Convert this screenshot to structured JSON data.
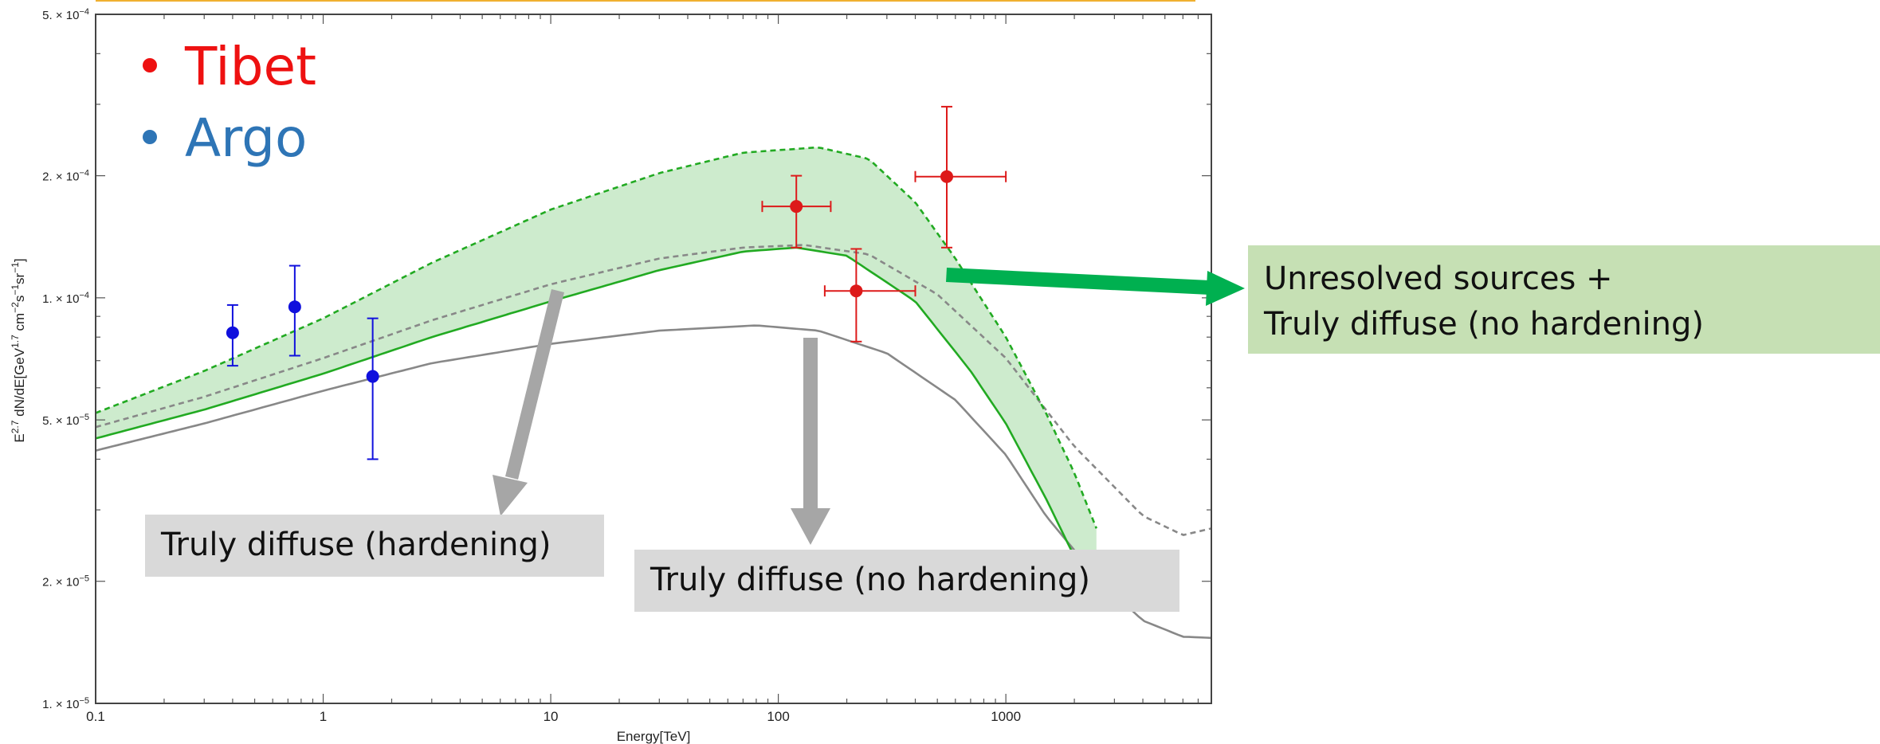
{
  "chart_data": {
    "type": "line",
    "xlabel": "Energy[TeV]",
    "ylabel_parts": {
      "base": "E",
      "exp1": "2.7",
      "mid": " dN/dE[GeV",
      "exp2": "1.7",
      "mid2": " cm",
      "exp3": "−2",
      "mid3": "s",
      "exp4": "−1",
      "mid4": "sr",
      "exp5": "−1",
      "end": "]"
    },
    "x_scale": "log",
    "y_scale": "log",
    "xlim": [
      0.1,
      8000
    ],
    "ylim": [
      1e-05,
      0.0005
    ],
    "x_ticks": [
      {
        "value": 0.1,
        "label": "0.1"
      },
      {
        "value": 1,
        "label": "1"
      },
      {
        "value": 10,
        "label": "10"
      },
      {
        "value": 100,
        "label": "100"
      },
      {
        "value": 1000,
        "label": "1000"
      }
    ],
    "y_ticks": [
      {
        "value": 1e-05,
        "label_mant": "1. × 10",
        "label_exp": "−5"
      },
      {
        "value": 2e-05,
        "label_mant": "2. × 10",
        "label_exp": "−5"
      },
      {
        "value": 5e-05,
        "label_mant": "5. × 10",
        "label_exp": "−5"
      },
      {
        "value": 0.0001,
        "label_mant": "1. × 10",
        "label_exp": "−4"
      },
      {
        "value": 0.0002,
        "label_mant": "2. × 10",
        "label_exp": "−4"
      },
      {
        "value": 0.0005,
        "label_mant": "5. × 10",
        "label_exp": "−4"
      }
    ],
    "legend": [
      {
        "label": "Tibet",
        "color": "#ee1111"
      },
      {
        "label": "Argo",
        "color": "#2e75b6"
      }
    ],
    "band_color": "#cdebcd",
    "curves": {
      "green_dashed_upper": {
        "color": "#22aa22",
        "dash": true,
        "points": [
          [
            0.1,
            5.2e-05
          ],
          [
            0.3,
            6.6e-05
          ],
          [
            1,
            8.9e-05
          ],
          [
            3,
            0.000122
          ],
          [
            10,
            0.000165
          ],
          [
            30,
            0.000203
          ],
          [
            70,
            0.000228
          ],
          [
            150,
            0.000235
          ],
          [
            250,
            0.00022
          ],
          [
            400,
            0.000172
          ],
          [
            600,
            0.000125
          ],
          [
            1000,
            8e-05
          ],
          [
            1500,
            5.2e-05
          ],
          [
            2000,
            3.7e-05
          ],
          [
            2500,
            2.7e-05
          ]
        ]
      },
      "green_solid": {
        "color": "#22aa22",
        "dash": false,
        "points": [
          [
            0.1,
            4.5e-05
          ],
          [
            0.3,
            5.3e-05
          ],
          [
            1,
            6.5e-05
          ],
          [
            3,
            8e-05
          ],
          [
            10,
            9.8e-05
          ],
          [
            30,
            0.000117
          ],
          [
            70,
            0.00013
          ],
          [
            120,
            0.000133
          ],
          [
            200,
            0.000127
          ],
          [
            400,
            9.8e-05
          ],
          [
            700,
            6.6e-05
          ],
          [
            1000,
            4.9e-05
          ],
          [
            1500,
            3.2e-05
          ],
          [
            2000,
            2.3e-05
          ],
          [
            2500,
            1.8e-05
          ]
        ]
      },
      "gray_dashed": {
        "color": "#888888",
        "dash": true,
        "points": [
          [
            0.1,
            4.8e-05
          ],
          [
            0.3,
            5.7e-05
          ],
          [
            1,
            7.1e-05
          ],
          [
            3,
            8.8e-05
          ],
          [
            10,
            0.000108
          ],
          [
            30,
            0.000125
          ],
          [
            70,
            0.000133
          ],
          [
            130,
            0.000135
          ],
          [
            250,
            0.000128
          ],
          [
            500,
            0.000102
          ],
          [
            1000,
            7.1e-05
          ],
          [
            2000,
            4.3e-05
          ],
          [
            4000,
            2.9e-05
          ],
          [
            6000,
            2.6e-05
          ],
          [
            8000,
            2.7e-05
          ]
        ]
      },
      "gray_solid": {
        "color": "#888888",
        "dash": false,
        "points": [
          [
            0.1,
            4.2e-05
          ],
          [
            0.3,
            4.9e-05
          ],
          [
            1,
            5.9e-05
          ],
          [
            3,
            6.9e-05
          ],
          [
            10,
            7.7e-05
          ],
          [
            30,
            8.3e-05
          ],
          [
            80,
            8.55e-05
          ],
          [
            150,
            8.3e-05
          ],
          [
            300,
            7.3e-05
          ],
          [
            600,
            5.6e-05
          ],
          [
            1000,
            4.1e-05
          ],
          [
            1500,
            2.9e-05
          ],
          [
            2500,
            2.05e-05
          ],
          [
            4000,
            1.6e-05
          ],
          [
            6000,
            1.46e-05
          ],
          [
            8000,
            1.45e-05
          ]
        ]
      }
    },
    "series": [
      {
        "name": "Tibet",
        "color": "#dd1a1a",
        "points": [
          {
            "x": 120,
            "y": 0.000168,
            "xlo": 85,
            "xhi": 170,
            "ylo": 0.000133,
            "yhi": 0.0002
          },
          {
            "x": 220,
            "y": 0.000104,
            "xlo": 160,
            "xhi": 400,
            "ylo": 7.8e-05,
            "yhi": 0.000132
          },
          {
            "x": 550,
            "y": 0.000199,
            "xlo": 400,
            "xhi": 1000,
            "ylo": 0.000133,
            "yhi": 0.000296
          }
        ]
      },
      {
        "name": "Argo",
        "color": "#1010dd",
        "points": [
          {
            "x": 0.4,
            "y": 8.2e-05,
            "ylo": 6.8e-05,
            "yhi": 9.6e-05
          },
          {
            "x": 0.75,
            "y": 9.5e-05,
            "ylo": 7.2e-05,
            "yhi": 0.00012
          },
          {
            "x": 1.65,
            "y": 6.4e-05,
            "ylo": 4e-05,
            "yhi": 8.9e-05
          }
        ]
      }
    ],
    "annotations": [
      {
        "text": "Truly diffuse (hardening)"
      },
      {
        "text": "Truly diffuse (no hardening)"
      },
      {
        "text_line1": "Unresolved sources +",
        "text_line2": "Truly diffuse (no hardening)"
      }
    ],
    "arrow_colors": {
      "gray": "#a6a6a6",
      "green": "#00b050"
    }
  }
}
